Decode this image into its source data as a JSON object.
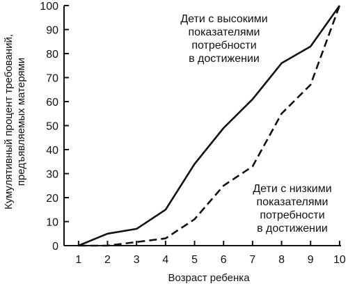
{
  "chart_data": {
    "type": "line",
    "title": "",
    "xlabel": "Возраст ребенка",
    "ylabel": [
      "Кумулятивный процент требований,",
      "предъявляемых матерями"
    ],
    "x": [
      1,
      2,
      3,
      4,
      5,
      6,
      7,
      8,
      9,
      10
    ],
    "xlim": [
      0.5,
      10.05
    ],
    "ylim": [
      0,
      100
    ],
    "xticks": [
      1,
      2,
      3,
      4,
      5,
      6,
      7,
      8,
      9,
      10
    ],
    "yticks": [
      0,
      10,
      20,
      30,
      40,
      50,
      60,
      70,
      80,
      90,
      100
    ],
    "grid": false,
    "legend": "none",
    "series": [
      {
        "id": "high",
        "style": "solid",
        "color": "#111111",
        "values": [
          0,
          5,
          7,
          15,
          34,
          49,
          61,
          76,
          83,
          100
        ]
      },
      {
        "id": "low",
        "style": "dashed",
        "color": "#111111",
        "values": [
          0,
          0,
          1.5,
          3,
          11,
          25,
          33,
          55,
          67,
          100
        ]
      }
    ],
    "annotations": [
      {
        "series": "high",
        "lines": [
          "Дети с высокими",
          "показателями",
          "потребности",
          "в достижении"
        ]
      },
      {
        "series": "low",
        "lines": [
          "Дети с низкими",
          "показателями",
          "потребности",
          "в достижении"
        ]
      }
    ]
  }
}
